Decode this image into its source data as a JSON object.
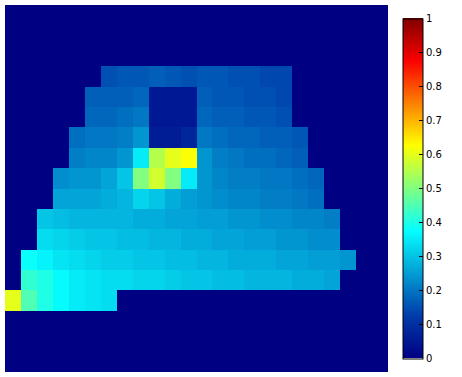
{
  "chart_data": {
    "type": "heatmap",
    "tick_labels": false,
    "xlim": [
      -0.5,
      23.5
    ],
    "ylim": [
      17.5,
      -0.5
    ],
    "colorbar": {
      "range": [
        0,
        1
      ],
      "ticks": [
        0,
        0.1,
        0.2,
        0.3,
        0.4,
        0.5,
        0.6,
        0.7,
        0.8,
        0.9,
        1
      ]
    },
    "cells": [
      [
        0,
        0,
        0,
        0,
        0,
        0,
        0,
        0,
        0,
        0,
        0,
        0,
        0,
        0,
        0,
        0,
        0,
        0,
        0,
        0,
        0,
        0,
        0,
        0
      ],
      [
        0,
        0,
        0,
        0,
        0,
        0,
        0,
        0,
        0,
        0,
        0,
        0,
        0,
        0,
        0,
        0,
        0,
        0,
        0,
        0,
        0,
        0,
        0,
        0
      ],
      [
        0,
        0,
        0,
        0,
        0,
        0,
        0,
        0,
        0,
        0,
        0,
        0,
        0,
        0,
        0,
        0,
        0,
        0,
        0,
        0,
        0,
        0,
        0,
        0
      ],
      [
        0,
        0,
        0,
        0,
        0,
        0,
        0.15,
        0.16,
        0.16,
        0.17,
        0.16,
        0.15,
        0.16,
        0.16,
        0.15,
        0.15,
        0.14,
        0.14,
        0,
        0,
        0,
        0,
        0,
        0
      ],
      [
        0,
        0,
        0,
        0,
        0,
        0.17,
        0.17,
        0.17,
        0.18,
        0.05,
        0.05,
        0.05,
        0.17,
        0.16,
        0.16,
        0.15,
        0.15,
        0.14,
        0,
        0,
        0,
        0,
        0,
        0
      ],
      [
        0,
        0,
        0,
        0,
        0,
        0.18,
        0.18,
        0.19,
        0.2,
        0.05,
        0.05,
        0.05,
        0.18,
        0.17,
        0.17,
        0.16,
        0.16,
        0.15,
        0,
        0,
        0,
        0,
        0,
        0
      ],
      [
        0,
        0,
        0,
        0,
        0.19,
        0.2,
        0.2,
        0.21,
        0.24,
        0.06,
        0.06,
        0.08,
        0.2,
        0.19,
        0.18,
        0.18,
        0.17,
        0.17,
        0.16,
        0,
        0,
        0,
        0,
        0
      ],
      [
        0,
        0,
        0,
        0,
        0.21,
        0.22,
        0.22,
        0.24,
        0.35,
        0.55,
        0.6,
        0.62,
        0.24,
        0.21,
        0.2,
        0.19,
        0.19,
        0.18,
        0.17,
        0,
        0,
        0,
        0,
        0
      ],
      [
        0,
        0,
        0,
        0.23,
        0.24,
        0.24,
        0.26,
        0.3,
        0.5,
        0.58,
        0.5,
        0.35,
        0.24,
        0.22,
        0.21,
        0.21,
        0.2,
        0.2,
        0.19,
        0.18,
        0,
        0,
        0,
        0
      ],
      [
        0,
        0,
        0,
        0.26,
        0.26,
        0.26,
        0.27,
        0.28,
        0.32,
        0.3,
        0.27,
        0.25,
        0.24,
        0.23,
        0.22,
        0.22,
        0.21,
        0.21,
        0.2,
        0.19,
        0,
        0,
        0,
        0
      ],
      [
        0,
        0,
        0.3,
        0.29,
        0.28,
        0.28,
        0.28,
        0.28,
        0.27,
        0.27,
        0.26,
        0.26,
        0.25,
        0.25,
        0.24,
        0.24,
        0.23,
        0.23,
        0.22,
        0.22,
        0.21,
        0,
        0,
        0
      ],
      [
        0,
        0,
        0.33,
        0.32,
        0.31,
        0.3,
        0.3,
        0.29,
        0.29,
        0.28,
        0.28,
        0.27,
        0.27,
        0.26,
        0.26,
        0.25,
        0.25,
        0.24,
        0.24,
        0.23,
        0.23,
        0,
        0,
        0
      ],
      [
        0,
        0.38,
        0.36,
        0.34,
        0.33,
        0.32,
        0.31,
        0.31,
        0.3,
        0.3,
        0.29,
        0.29,
        0.28,
        0.28,
        0.27,
        0.27,
        0.27,
        0.26,
        0.26,
        0.25,
        0.25,
        0.24,
        0,
        0
      ],
      [
        0,
        0.42,
        0.4,
        0.37,
        0.35,
        0.34,
        0.33,
        0.33,
        0.32,
        0.32,
        0.31,
        0.3,
        0.3,
        0.29,
        0.29,
        0.28,
        0.28,
        0.28,
        0.27,
        0.27,
        0.26,
        0,
        0,
        0
      ],
      [
        0.6,
        0.45,
        0.4,
        0.37,
        0.35,
        0.34,
        0.33,
        0,
        0,
        0,
        0,
        0,
        0,
        0,
        0,
        0,
        0,
        0,
        0,
        0,
        0,
        0,
        0,
        0
      ],
      [
        0,
        0,
        0,
        0,
        0,
        0,
        0,
        0,
        0,
        0,
        0,
        0,
        0,
        0,
        0,
        0,
        0,
        0,
        0,
        0,
        0,
        0,
        0,
        0
      ],
      [
        0,
        0,
        0,
        0,
        0,
        0,
        0,
        0,
        0,
        0,
        0,
        0,
        0,
        0,
        0,
        0,
        0,
        0,
        0,
        0,
        0,
        0,
        0,
        0
      ],
      [
        0,
        0,
        0,
        0,
        0,
        0,
        0,
        0,
        0,
        0,
        0,
        0,
        0,
        0,
        0,
        0,
        0,
        0,
        0,
        0,
        0,
        0,
        0,
        0
      ]
    ]
  }
}
